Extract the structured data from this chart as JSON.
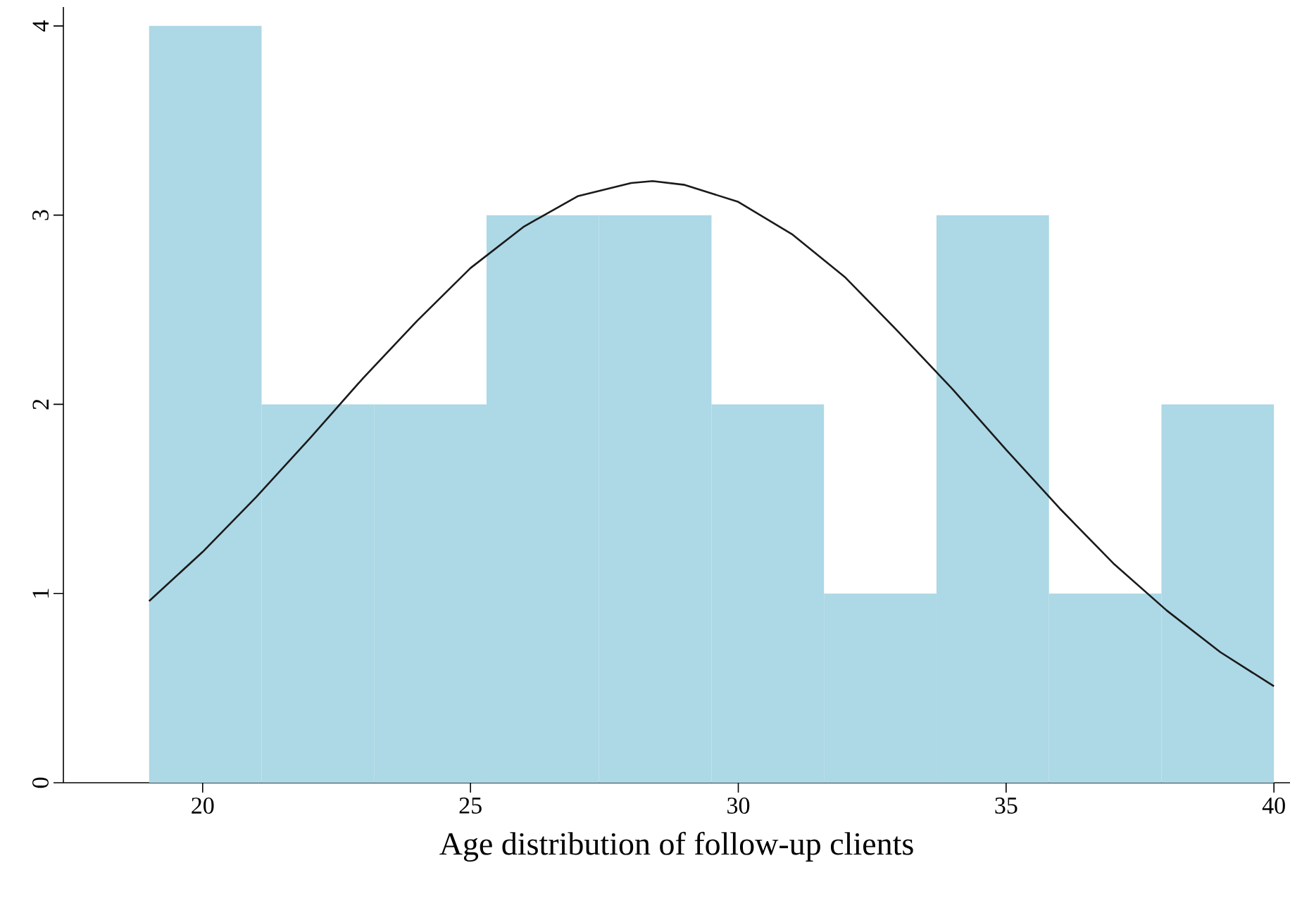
{
  "chart_data": {
    "type": "histogram",
    "xlabel": "Age distribution of follow-up clients",
    "bins": [
      19,
      21.1,
      23.2,
      25.3,
      27.4,
      29.5,
      31.6,
      33.7,
      35.8,
      37.9,
      40
    ],
    "values": [
      4,
      2,
      2,
      3,
      3,
      2,
      1,
      3,
      1,
      2
    ],
    "color": "#add8e6",
    "series": [
      {
        "type": "line",
        "color": "#1a1a1a",
        "x": [
          19,
          20,
          21,
          22,
          23,
          24,
          25,
          26,
          27,
          28,
          28.4,
          29,
          30,
          31,
          32,
          33,
          34,
          35,
          36,
          37,
          38,
          39,
          40
        ],
        "values": [
          0.96,
          1.22,
          1.51,
          1.82,
          2.14,
          2.44,
          2.72,
          2.94,
          3.1,
          3.17,
          3.18,
          3.16,
          3.07,
          2.9,
          2.67,
          2.38,
          2.08,
          1.76,
          1.45,
          1.16,
          0.91,
          0.69,
          0.51
        ]
      }
    ],
    "xlim": [
      17.4,
      40.3
    ],
    "ylim": [
      0,
      4.1
    ],
    "xticks": [
      20,
      25,
      30,
      35,
      40
    ],
    "yticks": [
      0,
      1,
      2,
      3,
      4
    ]
  }
}
